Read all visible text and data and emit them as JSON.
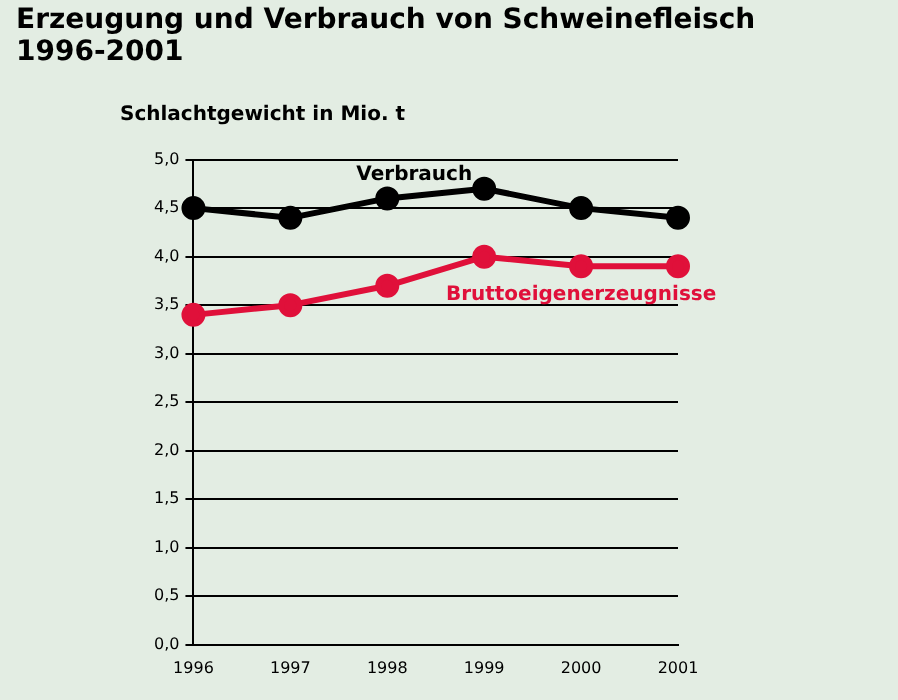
{
  "chart_data": {
    "type": "line",
    "title": "Erzeugung und Verbrauch von Schweinefleisch\n1996-2001",
    "ylabel": "Schlachtgewicht in Mio. t",
    "categories": [
      "1996",
      "1997",
      "1998",
      "1999",
      "2000",
      "2001"
    ],
    "series": [
      {
        "name": "Verbrauch",
        "color": "#000000",
        "values": [
          4.5,
          4.4,
          4.6,
          4.7,
          4.5,
          4.4
        ]
      },
      {
        "name": "Bruttoeigenerzeugnisse",
        "color": "#e0103a",
        "values": [
          3.4,
          3.5,
          3.7,
          4.0,
          3.9,
          3.9
        ]
      }
    ],
    "ylim": [
      0,
      5
    ],
    "yticks": [
      {
        "value": 0,
        "label": "0,0"
      },
      {
        "value": 0.5,
        "label": "0,5"
      },
      {
        "value": 1,
        "label": "1,0"
      },
      {
        "value": 1.5,
        "label": "1,5"
      },
      {
        "value": 2,
        "label": "2,0"
      },
      {
        "value": 2.5,
        "label": "2,5"
      },
      {
        "value": 3,
        "label": "3,0"
      },
      {
        "value": 3.5,
        "label": "3,5"
      },
      {
        "value": 4,
        "label": "4,0"
      },
      {
        "value": 4.5,
        "label": "4,5"
      },
      {
        "value": 5,
        "label": "5,0"
      }
    ],
    "grid": "y",
    "legend": false,
    "marker": "circle",
    "line_style": "solid"
  }
}
